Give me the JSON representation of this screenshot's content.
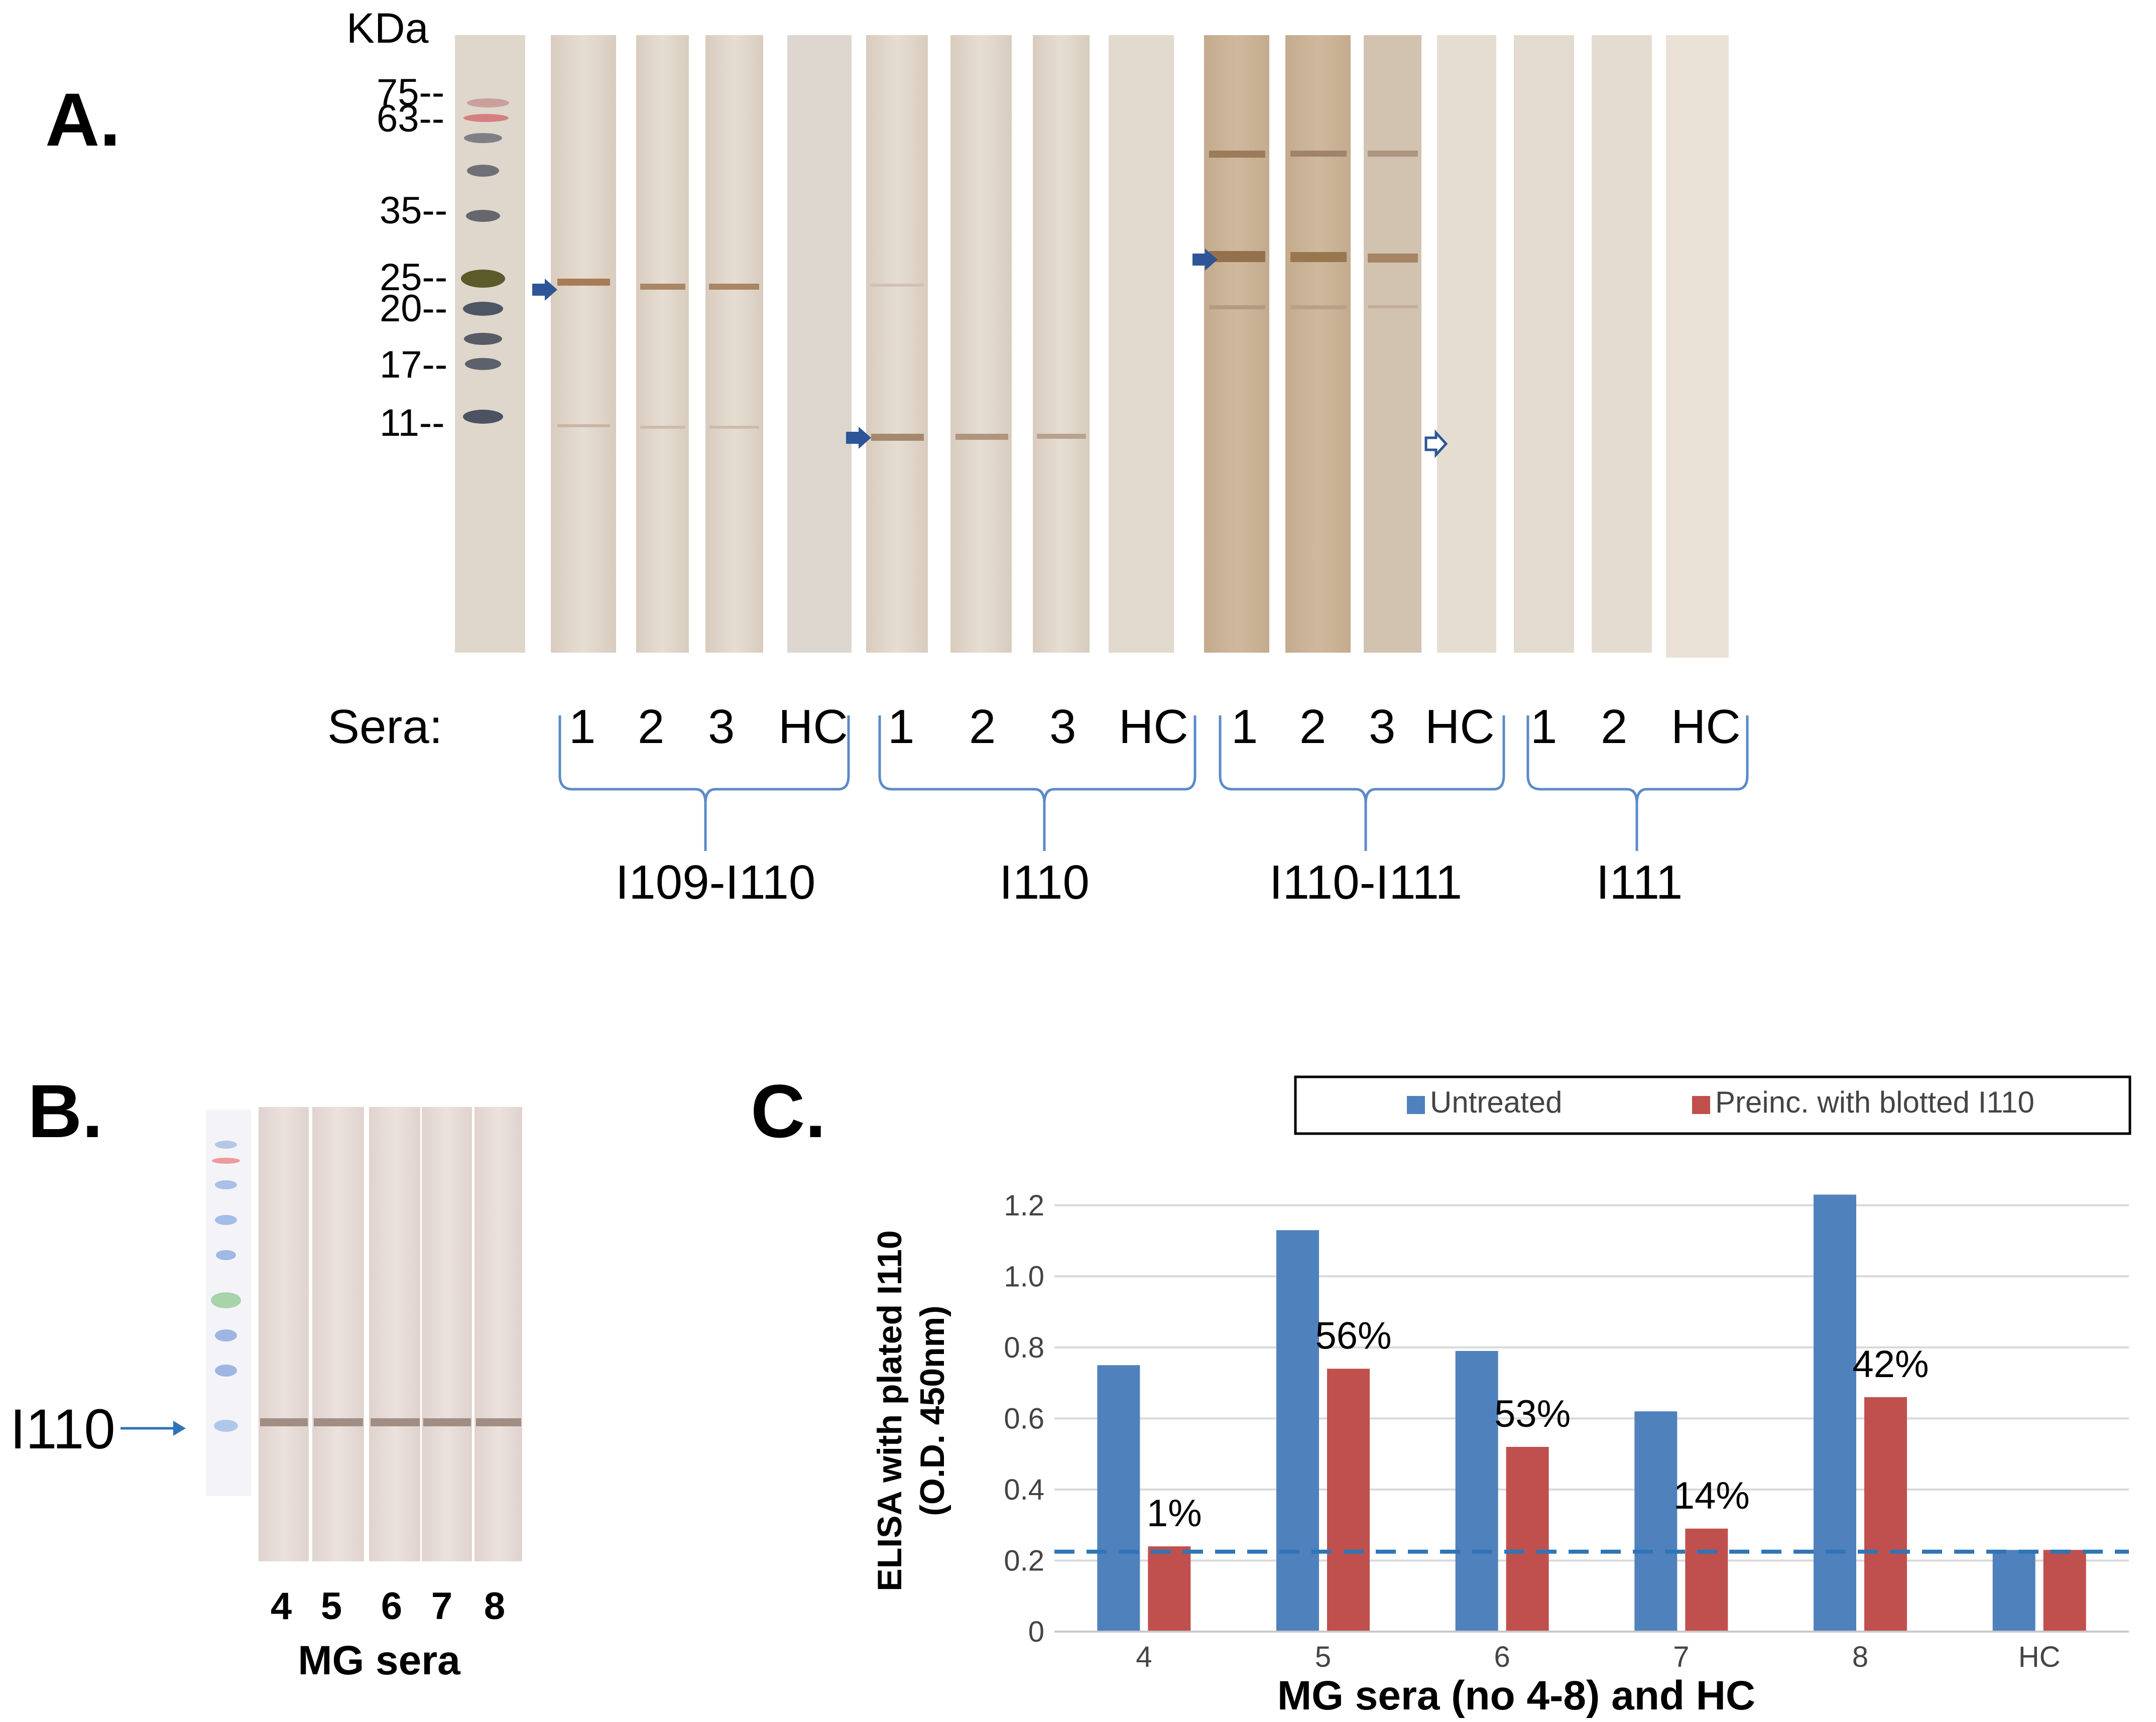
{
  "panel_a": {
    "label": "A.",
    "unit": "KDa",
    "markers": [
      {
        "value": 75,
        "text": "75--"
      },
      {
        "value": 63,
        "text": "63--"
      },
      {
        "value": 35,
        "text": "35--"
      },
      {
        "value": 25,
        "text": "25--"
      },
      {
        "value": 20,
        "text": "20--"
      },
      {
        "value": 17,
        "text": "17--"
      },
      {
        "value": 11,
        "text": "11--"
      }
    ],
    "sera_label": "Sera:",
    "groups": [
      {
        "name": "I109-I110",
        "lanes": [
          "1",
          "2",
          "3",
          "HC"
        ]
      },
      {
        "name": "I110",
        "lanes": [
          "1",
          "2",
          "3",
          "HC"
        ]
      },
      {
        "name": "I110-I111",
        "lanes": [
          "1",
          "2",
          "3",
          "HC"
        ]
      },
      {
        "name": "I111",
        "lanes": [
          "1",
          "2",
          "HC"
        ]
      }
    ]
  },
  "panel_b": {
    "label": "B.",
    "band_label": "I110",
    "lanes": [
      "4",
      "5",
      "6",
      "7",
      "8"
    ],
    "xlabel": "MG sera"
  },
  "panel_c": {
    "label": "C.",
    "chart_data": {
      "type": "bar",
      "categories": [
        "4",
        "5",
        "6",
        "7",
        "8",
        "HC"
      ],
      "series": [
        {
          "name": "Untreated",
          "color": "#4f81bd",
          "values": [
            0.75,
            1.13,
            0.79,
            0.62,
            1.23,
            0.23
          ]
        },
        {
          "name": "Preinc. with blotted I110",
          "color": "#c0504d",
          "values": [
            0.24,
            0.74,
            0.52,
            0.29,
            0.66,
            0.23
          ]
        }
      ],
      "reduction_labels": [
        "1%",
        "56%",
        "53%",
        "14%",
        "42%",
        ""
      ],
      "cutoff_line": 0.225,
      "ylim": [
        0,
        1.3
      ],
      "yticks": [
        {
          "value": 0,
          "text": "0"
        },
        {
          "value": 0.2,
          "text": "0.2"
        },
        {
          "value": 0.4,
          "text": "0.4"
        },
        {
          "value": 0.6,
          "text": "0.6"
        },
        {
          "value": 0.8,
          "text": "0.8"
        },
        {
          "value": 1.0,
          "text": "1.0"
        },
        {
          "value": 1.2,
          "text": "1.2"
        }
      ],
      "ylabel_line1": "ELISA with plated I110",
      "ylabel_line2": "(O.D. 450nm)",
      "xlabel": "MG sera (no 4-8) and HC",
      "legend_position": "top"
    }
  }
}
